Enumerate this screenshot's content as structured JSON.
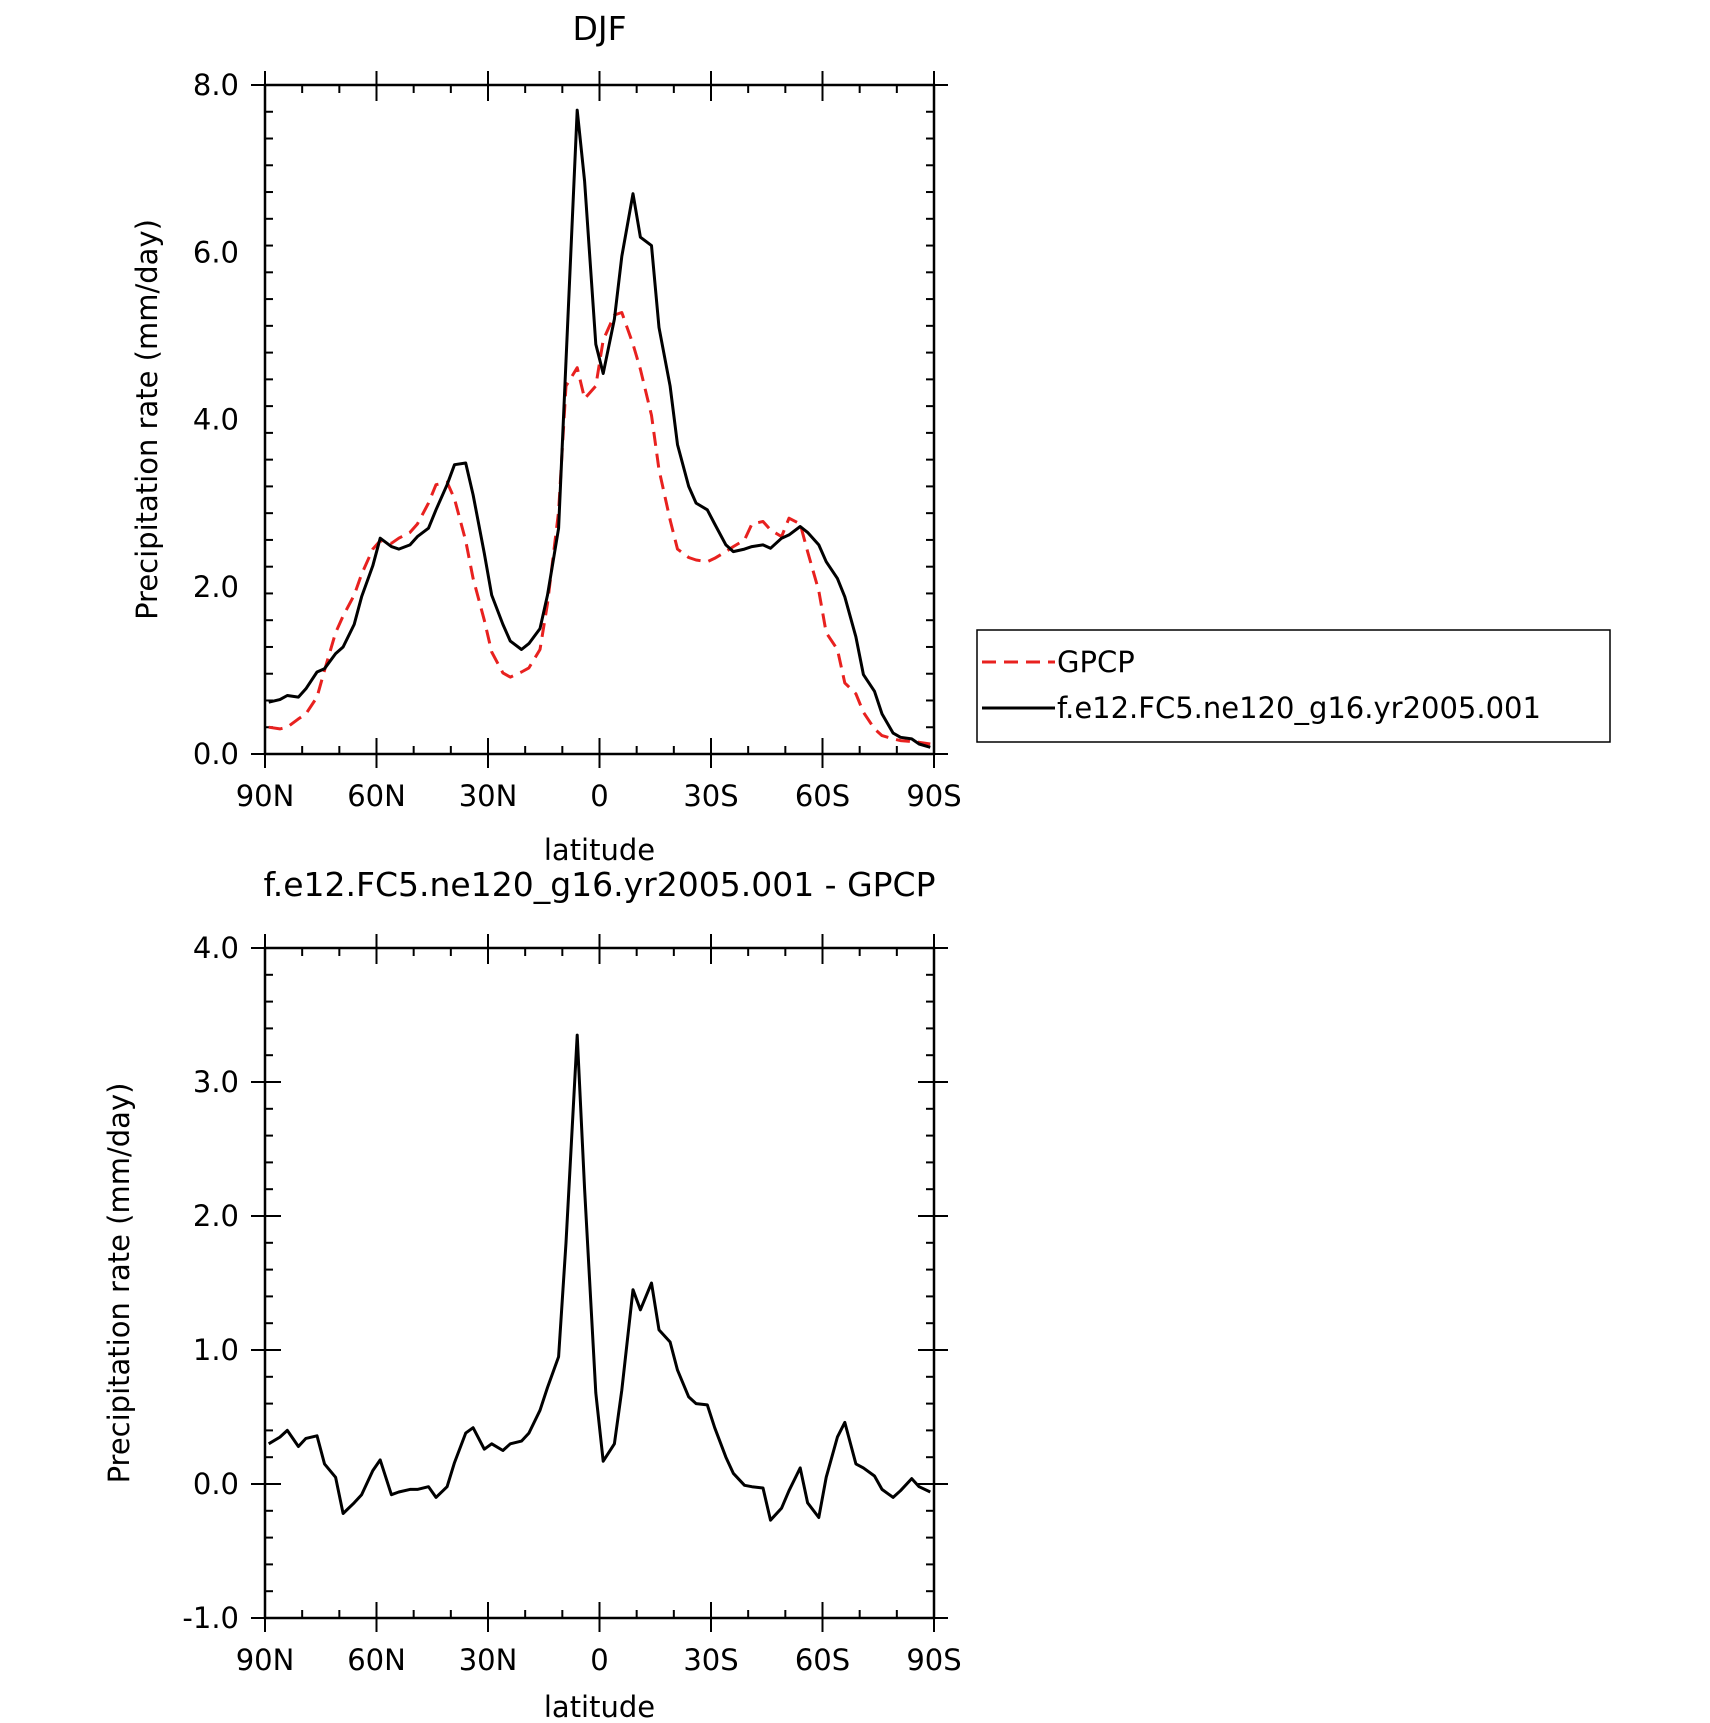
{
  "chart_data": [
    {
      "type": "line",
      "title": "DJF",
      "xlabel": "latitude",
      "ylabel": "Precipitation rate (mm/day)",
      "xlim": [
        -90,
        90
      ],
      "ylim": [
        0,
        8
      ],
      "x_ticks": [
        -90,
        -60,
        -30,
        0,
        30,
        60,
        90
      ],
      "x_tick_labels": [
        "90N",
        "60N",
        "30N",
        "0",
        "30S",
        "60S",
        "90S"
      ],
      "y_ticks": [
        0,
        2,
        4,
        6,
        8
      ],
      "y_tick_labels": [
        "0.0",
        "2.0",
        "4.0",
        "6.0",
        "8.0"
      ],
      "grid": false,
      "legend_position": "right",
      "series": [
        {
          "name": "GPCP",
          "color": "#e8211f",
          "dash": "dashed",
          "x": [
            -89,
            -86,
            -84,
            -81,
            -79,
            -76,
            -74,
            -71,
            -69,
            -66,
            -64,
            -61,
            -59,
            -56,
            -54,
            -51,
            -49,
            -46,
            -44,
            -41,
            -39,
            -36,
            -34,
            -31,
            -29,
            -26,
            -24,
            -21,
            -19,
            -16,
            -14,
            -11,
            -9,
            -6,
            -4,
            -1,
            1,
            4,
            6,
            9,
            11,
            14,
            16,
            19,
            21,
            24,
            26,
            29,
            31,
            34,
            36,
            39,
            41,
            44,
            46,
            49,
            51,
            54,
            56,
            59,
            61,
            64,
            66,
            69,
            71,
            74,
            76,
            79,
            81,
            84,
            86,
            89
          ],
          "values": [
            0.32,
            0.3,
            0.32,
            0.42,
            0.48,
            0.68,
            1.0,
            1.45,
            1.65,
            1.9,
            2.15,
            2.45,
            2.55,
            2.52,
            2.58,
            2.65,
            2.75,
            3.0,
            3.22,
            3.25,
            3.05,
            2.55,
            2.1,
            1.6,
            1.22,
            0.97,
            0.92,
            0.98,
            1.03,
            1.25,
            1.8,
            2.9,
            4.4,
            4.62,
            4.25,
            4.4,
            4.95,
            5.25,
            5.28,
            4.9,
            4.6,
            4.05,
            3.4,
            2.8,
            2.45,
            2.35,
            2.32,
            2.3,
            2.34,
            2.42,
            2.48,
            2.56,
            2.75,
            2.78,
            2.68,
            2.6,
            2.82,
            2.75,
            2.42,
            1.95,
            1.45,
            1.25,
            0.85,
            0.72,
            0.5,
            0.3,
            0.22,
            0.18,
            0.16,
            0.15,
            0.14,
            0.12
          ]
        },
        {
          "name": "f.e12.FC5.ne120_g16.yr2005.001",
          "color": "#000000",
          "dash": "solid",
          "x": [
            -89,
            -86,
            -84,
            -81,
            -79,
            -76,
            -74,
            -71,
            -69,
            -66,
            -64,
            -61,
            -59,
            -56,
            -54,
            -51,
            -49,
            -46,
            -44,
            -41,
            -39,
            -36,
            -34,
            -31,
            -29,
            -26,
            -24,
            -21,
            -19,
            -16,
            -14,
            -11,
            -9,
            -6,
            -4,
            -1,
            1,
            4,
            6,
            9,
            11,
            14,
            16,
            19,
            21,
            24,
            26,
            29,
            31,
            34,
            36,
            39,
            41,
            44,
            46,
            49,
            51,
            54,
            56,
            59,
            61,
            64,
            66,
            69,
            71,
            74,
            76,
            79,
            81,
            84,
            86,
            89
          ],
          "values": [
            0.62,
            0.65,
            0.7,
            0.68,
            0.78,
            0.98,
            1.02,
            1.2,
            1.28,
            1.55,
            1.88,
            2.25,
            2.58,
            2.48,
            2.45,
            2.5,
            2.6,
            2.7,
            2.92,
            3.22,
            3.46,
            3.48,
            3.1,
            2.4,
            1.9,
            1.55,
            1.35,
            1.25,
            1.32,
            1.5,
            1.9,
            2.7,
            4.7,
            7.7,
            6.85,
            4.9,
            4.55,
            5.2,
            5.95,
            6.7,
            6.18,
            6.08,
            5.1,
            4.4,
            3.7,
            3.2,
            3.0,
            2.92,
            2.75,
            2.5,
            2.42,
            2.45,
            2.48,
            2.5,
            2.46,
            2.58,
            2.62,
            2.72,
            2.65,
            2.5,
            2.3,
            2.1,
            1.88,
            1.4,
            0.95,
            0.75,
            0.48,
            0.25,
            0.2,
            0.18,
            0.12,
            0.08
          ]
        }
      ]
    },
    {
      "type": "line",
      "title": "f.e12.FC5.ne120_g16.yr2005.001 - GPCP",
      "xlabel": "latitude",
      "ylabel": "Precipitation rate (mm/day)",
      "xlim": [
        -90,
        90
      ],
      "ylim": [
        -1,
        4
      ],
      "x_ticks": [
        -90,
        -60,
        -30,
        0,
        30,
        60,
        90
      ],
      "x_tick_labels": [
        "90N",
        "60N",
        "30N",
        "0",
        "30S",
        "60S",
        "90S"
      ],
      "y_ticks": [
        -1,
        0,
        1,
        2,
        3,
        4
      ],
      "y_tick_labels": [
        "-1.0",
        "0.0",
        "1.0",
        "2.0",
        "3.0",
        "4.0"
      ],
      "grid": false,
      "series": [
        {
          "color": "#000000",
          "dash": "solid",
          "x": [
            -89,
            -86,
            -84,
            -81,
            -79,
            -76,
            -74,
            -71,
            -69,
            -66,
            -64,
            -61,
            -59,
            -56,
            -54,
            -51,
            -49,
            -46,
            -44,
            -41,
            -39,
            -36,
            -34,
            -31,
            -29,
            -26,
            -24,
            -21,
            -19,
            -16,
            -14,
            -11,
            -9,
            -6,
            -4,
            -1,
            1,
            4,
            6,
            9,
            11,
            14,
            16,
            19,
            21,
            24,
            26,
            29,
            31,
            34,
            36,
            39,
            41,
            44,
            46,
            49,
            51,
            54,
            56,
            59,
            61,
            64,
            66,
            69,
            71,
            74,
            76,
            79,
            81,
            84,
            86,
            89
          ],
          "values": [
            0.3,
            0.35,
            0.4,
            0.28,
            0.34,
            0.36,
            0.15,
            0.05,
            -0.22,
            -0.14,
            -0.08,
            0.1,
            0.18,
            -0.08,
            -0.06,
            -0.04,
            -0.04,
            -0.02,
            -0.1,
            -0.02,
            0.16,
            0.38,
            0.42,
            0.26,
            0.3,
            0.25,
            0.3,
            0.32,
            0.38,
            0.55,
            0.72,
            0.95,
            1.8,
            3.35,
            2.2,
            0.68,
            0.17,
            0.3,
            0.7,
            1.45,
            1.3,
            1.5,
            1.15,
            1.06,
            0.85,
            0.65,
            0.6,
            0.59,
            0.42,
            0.2,
            0.08,
            -0.01,
            -0.02,
            -0.03,
            -0.27,
            -0.18,
            -0.05,
            0.12,
            -0.14,
            -0.25,
            0.05,
            0.35,
            0.46,
            0.15,
            0.12,
            0.06,
            -0.04,
            -0.1,
            -0.05,
            0.04,
            -0.02,
            -0.06
          ]
        }
      ]
    }
  ]
}
